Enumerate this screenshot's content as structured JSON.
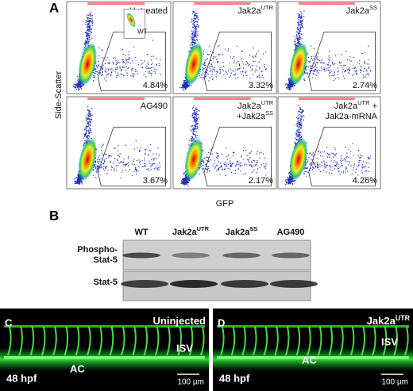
{
  "panel_a": {
    "label": "A",
    "y_axis": "Side-Scatter",
    "x_axis": "GFP",
    "inset": "WT",
    "plots": [
      {
        "lines": [
          [
            {
              "text": "Untreated"
            }
          ]
        ],
        "percent": "4.84%"
      },
      {
        "lines": [
          [
            {
              "text": "Jak2a",
              "sup": "UTR"
            }
          ]
        ],
        "percent": "3.32%"
      },
      {
        "lines": [
          [
            {
              "text": "Jak2a",
              "sup": "SS"
            }
          ]
        ],
        "percent": "2.74%"
      },
      {
        "lines": [
          [
            {
              "text": "AG490"
            }
          ]
        ],
        "percent": "3.67%"
      },
      {
        "lines": [
          [
            {
              "text": "Jak2a",
              "sup": "UTR"
            }
          ],
          [
            {
              "text": "+Jak2a",
              "sup": "SS"
            }
          ]
        ],
        "percent": "2.17%"
      },
      {
        "lines": [
          [
            {
              "text": "Jak2a",
              "sup": "UTR"
            },
            {
              "text": " +"
            }
          ],
          [
            {
              "text": "Jak2a-mRNA"
            }
          ]
        ],
        "percent": "4.26%"
      }
    ]
  },
  "panel_b": {
    "label": "B",
    "columns": [
      [
        {
          "text": "WT"
        }
      ],
      [
        {
          "text": "Jak2a",
          "sup": "UTR"
        }
      ],
      [
        {
          "text": "Jak2a",
          "sup": "SS"
        }
      ],
      [
        {
          "text": "AG490"
        }
      ]
    ],
    "rows": [
      [
        "Phospho-",
        "Stat-5"
      ],
      [
        "Stat-5"
      ]
    ]
  },
  "panel_c": {
    "label": "C",
    "condition": [
      {
        "text": "Uninjected"
      }
    ],
    "isv": "ISV",
    "ac": "AC",
    "stage": "48 hpf",
    "scale": "100 µm"
  },
  "panel_d": {
    "label": "D",
    "condition": [
      {
        "text": "Jak2a",
        "sup": "UTR"
      }
    ],
    "isv": "ISV",
    "ac": "AC",
    "stage": "48 hpf",
    "scale": "100 µm"
  }
}
